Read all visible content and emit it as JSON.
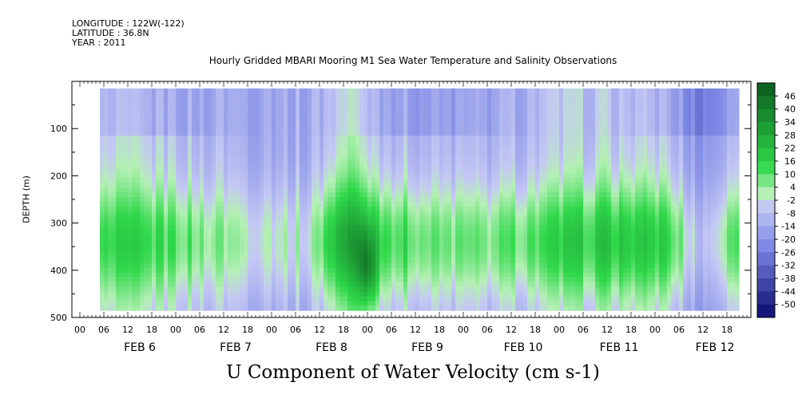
{
  "header": {
    "longitude": "LONGITUDE : 122W(-122)",
    "latitude": "LATITUDE : 36.8N",
    "year": "YEAR : 2011"
  },
  "plot_title": "Hourly Gridded MBARI Mooring M1 Sea Water Temperature and Salinity Observations",
  "main_title": "U Component of Water Velocity (cm s-1)",
  "colors": {
    "strong_negative": "#0a0a6e",
    "negative": "#7b86e4",
    "weak_negative": "#c4c8f4",
    "weak_positive": "#b4f0b4",
    "positive": "#2fd84a",
    "strong_positive": "#0a5a1e"
  },
  "chart_data": {
    "type": "heatmap",
    "title": "Hourly Gridded MBARI Mooring M1 Sea Water Temperature and Salinity Observations",
    "subtitle": "U Component of Water Velocity (cm s-1)",
    "xlabel": "",
    "ylabel": "DEPTH (m)",
    "x_range_hours": [
      "2011-02-06 00:00",
      "2011-02-12 23:00"
    ],
    "data_extent_hours": [
      "2011-02-06 05:00",
      "2011-02-12 21:00"
    ],
    "y_range": [
      500,
      0
    ],
    "y_ticks": [
      100,
      200,
      300,
      400,
      500
    ],
    "x_tick_labels": [
      "00",
      "06",
      "12",
      "18",
      "00",
      "06",
      "12",
      "18",
      "00",
      "06",
      "12",
      "18",
      "00",
      "06",
      "12",
      "18",
      "00",
      "06",
      "12",
      "18",
      "00",
      "06",
      "12",
      "18",
      "00",
      "06",
      "12",
      "18"
    ],
    "date_labels": [
      "FEB 6",
      "FEB 7",
      "FEB 8",
      "FEB 9",
      "FEB 10",
      "FEB 11",
      "FEB 12"
    ],
    "colorbar_labels": [
      "46",
      "40",
      "34",
      "28",
      "22",
      "16",
      "10",
      "4",
      "-2",
      "-8",
      "-14",
      "-20",
      "-26",
      "-32",
      "-38",
      "-44",
      "-50"
    ],
    "colorbar_range": [
      -50,
      52
    ],
    "depth_range_observed": [
      15,
      485
    ],
    "description_values": {
      "approx_mean_upper_100m": -6,
      "approx_mean_250_450m": 8,
      "peak_near": {
        "time": "2011-02-09 00:00",
        "depth": 400,
        "value": 25
      }
    }
  }
}
